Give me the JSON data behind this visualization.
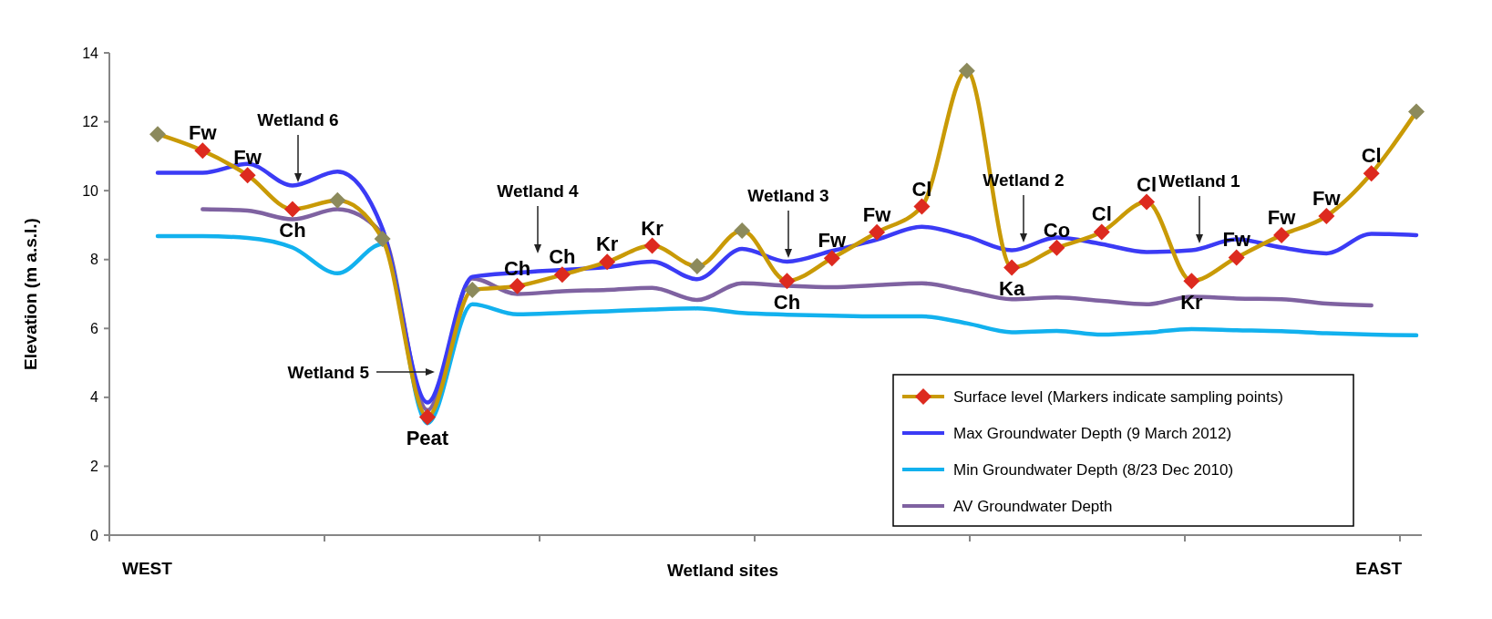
{
  "chart_data": {
    "type": "line",
    "xlabel": "Wetland sites",
    "ylabel": "Elevation (m a.s.l.)",
    "categories": [
      null,
      null,
      null,
      null,
      null,
      null,
      null,
      null,
      null,
      null,
      null,
      null,
      null,
      null,
      null,
      null,
      null,
      null,
      null,
      null,
      null,
      null,
      null,
      null,
      null,
      null,
      null,
      null,
      null
    ],
    "ylim": [
      0,
      14
    ],
    "yticks": [
      0,
      2,
      4,
      6,
      8,
      10,
      12,
      14
    ],
    "grid": false,
    "legend": "bottom right",
    "line_style": "solid",
    "series": [
      {
        "name": "Surface level (Markers indicate sampling points)",
        "color": "#c99a06",
        "marker": "diamond",
        "values": [
          11.64,
          11.16,
          10.45,
          9.46,
          9.72,
          8.6,
          3.43,
          7.12,
          7.23,
          7.56,
          7.93,
          8.4,
          7.81,
          8.84,
          7.38,
          8.04,
          8.79,
          9.54,
          13.48,
          7.77,
          8.34,
          8.8,
          9.67,
          7.38,
          8.06,
          8.71,
          9.26,
          10.5,
          12.29
        ],
        "colors": [
          "#8c8a5c",
          "#dd2a1f",
          "#dd2a1f",
          "#dd2a1f",
          "#8c8a5c",
          "#8c8a5c",
          "#dd2a1f",
          "#8c8a5c",
          "#dd2a1f",
          "#dd2a1f",
          "#dd2a1f",
          "#dd2a1f",
          "#8c8a5c",
          "#8c8a5c",
          "#dd2a1f",
          "#dd2a1f",
          "#dd2a1f",
          "#dd2a1f",
          "#8c8a5c",
          "#dd2a1f",
          "#dd2a1f",
          "#dd2a1f",
          "#dd2a1f",
          "#dd2a1f",
          "#dd2a1f",
          "#dd2a1f",
          "#dd2a1f",
          "#dd2a1f",
          "#8c8a5c"
        ]
      },
      {
        "name": "Max Groundwater Depth (9 March 2012)",
        "color": "#3b3bf5",
        "marker": "none",
        "values": [
          10.52,
          10.52,
          10.78,
          10.15,
          10.55,
          8.9,
          3.85,
          7.5,
          7.62,
          7.7,
          7.78,
          7.94,
          7.43,
          8.31,
          7.94,
          8.25,
          8.58,
          8.95,
          8.67,
          8.27,
          8.64,
          8.45,
          8.22,
          8.27,
          8.59,
          8.35,
          8.18,
          8.75,
          8.71
        ]
      },
      {
        "name": "Min Groundwater Depth (8/23 Dec 2010)",
        "color": "#12b1ee",
        "marker": "none",
        "values": [
          8.68,
          8.68,
          8.63,
          8.35,
          7.6,
          8.45,
          3.25,
          6.7,
          6.41,
          6.45,
          6.5,
          6.55,
          6.58,
          6.45,
          6.4,
          6.37,
          6.35,
          6.35,
          6.15,
          5.89,
          5.93,
          5.82,
          5.88,
          5.98,
          5.95,
          5.92,
          5.86,
          5.82,
          5.8
        ]
      },
      {
        "name": "AV Groundwater Depth",
        "color": "#7f62a1",
        "marker": "none",
        "values": [
          null,
          9.46,
          9.42,
          9.17,
          9.46,
          8.75,
          3.63,
          7.45,
          7.0,
          7.08,
          7.12,
          7.18,
          6.83,
          7.31,
          7.24,
          7.2,
          7.26,
          7.31,
          7.09,
          6.85,
          6.9,
          6.8,
          6.7,
          6.92,
          6.87,
          6.85,
          6.72,
          6.67,
          null
        ]
      }
    ],
    "annotations": [
      "WEST",
      "EAST",
      "Wetland 6",
      "Wetland 5",
      "Wetland 4",
      "Wetland 3",
      "Wetland 2",
      "Wetland 1",
      {
        "text": "Fw",
        "y": 11.16
      },
      {
        "text": "Fw",
        "y": 10.45
      },
      {
        "text": "Ch",
        "y": 9.46
      },
      {
        "text": "Peat",
        "y": 3.43
      },
      {
        "text": "Ch",
        "y": 7.23
      },
      {
        "text": "Ch",
        "y": 7.56
      },
      {
        "text": "Kr",
        "y": 7.93
      },
      {
        "text": "Kr",
        "y": 8.4
      },
      {
        "text": "Ch",
        "y": 7.38
      },
      {
        "text": "Fw",
        "y": 8.04
      },
      {
        "text": "Fw",
        "y": 8.79
      },
      {
        "text": "Cl",
        "y": 9.54
      },
      {
        "text": "Ka",
        "y": 7.77
      },
      {
        "text": "Co",
        "y": 8.34
      },
      {
        "text": "Cl",
        "y": 8.8
      },
      {
        "text": "Cl",
        "y": 9.67
      },
      {
        "text": "Kr",
        "y": 7.38
      },
      {
        "text": "Fw",
        "y": 8.06
      },
      {
        "text": "Fw",
        "y": 8.71
      },
      {
        "text": "Fw",
        "y": 9.26
      },
      {
        "text": "Cl",
        "y": 10.5
      }
    ]
  }
}
